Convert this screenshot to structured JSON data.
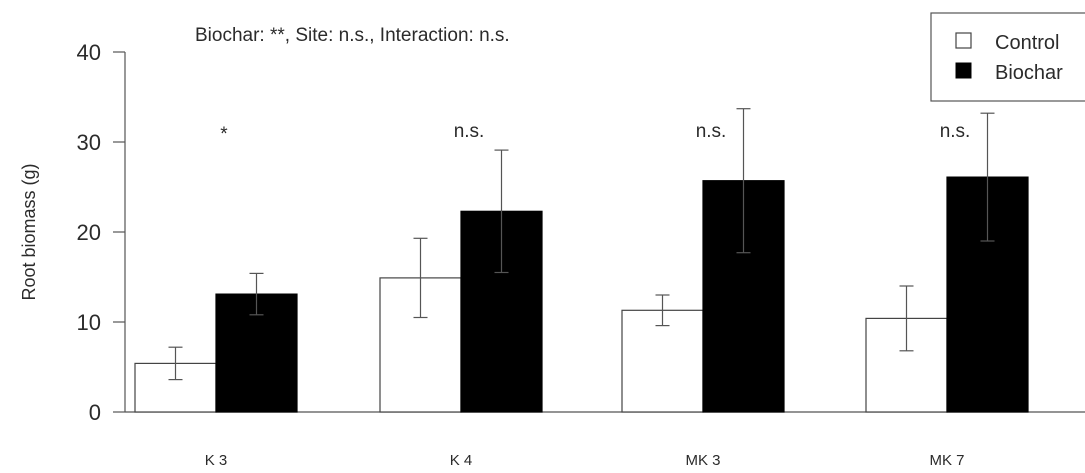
{
  "chart_data": {
    "type": "bar",
    "categories": [
      "K 3",
      "K 4",
      "MK 3",
      "MK 7"
    ],
    "series": [
      {
        "name": "Control",
        "values": [
          5.4,
          14.9,
          11.3,
          10.4
        ],
        "error": [
          1.8,
          4.4,
          1.7,
          3.6
        ],
        "color": "#ffffff",
        "stroke": "#000000"
      },
      {
        "name": "Biochar",
        "values": [
          13.1,
          22.3,
          25.7,
          26.1
        ],
        "error": [
          2.3,
          6.8,
          8.0,
          7.1
        ],
        "color": "#000000",
        "stroke": "#000000"
      }
    ],
    "significance": [
      "*",
      "n.s.",
      "n.s.",
      "n.s."
    ],
    "annotation": "Biochar: **, Site: n.s., Interaction: n.s.",
    "title": "",
    "xlabel": "",
    "ylabel": "Root biomass (g)",
    "ylim": [
      0,
      40
    ],
    "yticks": [
      0,
      10,
      20,
      30,
      40
    ],
    "grid": false,
    "legend_position": "top-right"
  }
}
